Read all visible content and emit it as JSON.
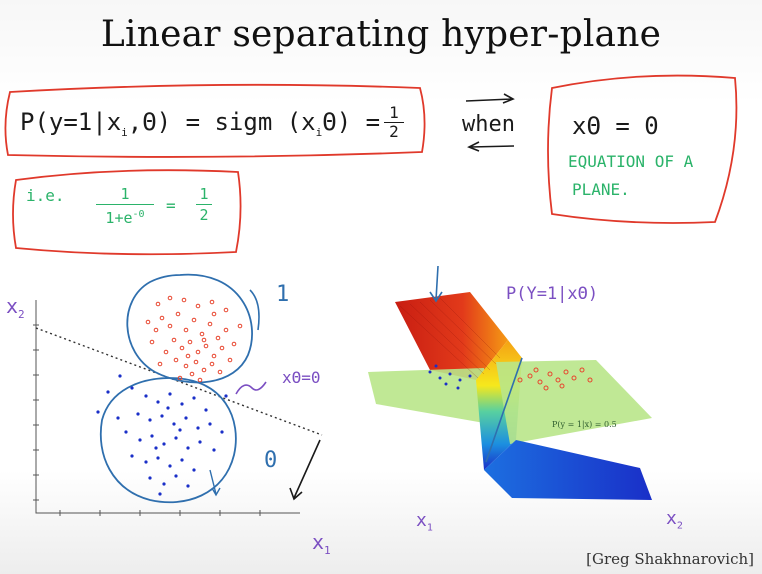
{
  "slide": {
    "title": "Linear separating hyper-plane",
    "credit": "[Greg Shakhnarovich]"
  },
  "annotations": {
    "prob_lhs": "P(y=1|x",
    "prob_mid": ",Θ) = sigm (x",
    "prob_rhs": "Θ) =",
    "half_num": "1",
    "half_den": "2",
    "sub_i1": "i",
    "sub_i2": "i",
    "when": "when",
    "plane_eq": "xΘ = 0",
    "plane_caption_1": "EQUATION OF A",
    "plane_caption_2": "PLANE.",
    "ie": "i.e.",
    "ie_num": "1",
    "ie_den": "1+e",
    "ie_exp": "-0",
    "ie_eq": "=",
    "ie_half_num": "1",
    "ie_half_den": "2",
    "boundary_label": "xΘ=0",
    "one_label": "1",
    "zero_label": "0",
    "x2_left": "x",
    "x2_left_sub": "2",
    "x1_left": "x",
    "x1_left_sub": "1",
    "surface_title": "P(Y=1|xΘ)",
    "x1_right": "x",
    "x1_right_sub": "1",
    "x2_right": "x",
    "x2_right_sub": "2",
    "plane_label": "P(y = 1|x) = 0.5"
  },
  "colors": {
    "black_ink": "#1a1a1a",
    "red_ink": "#e0392b",
    "green_ink": "#2bb36a",
    "blue_ink": "#2f6fae",
    "purple_ink": "#7b4fc2",
    "class1_points": "#e8452e",
    "class0_points": "#1a2fc8",
    "plane_fill": "#b9e58a"
  }
}
